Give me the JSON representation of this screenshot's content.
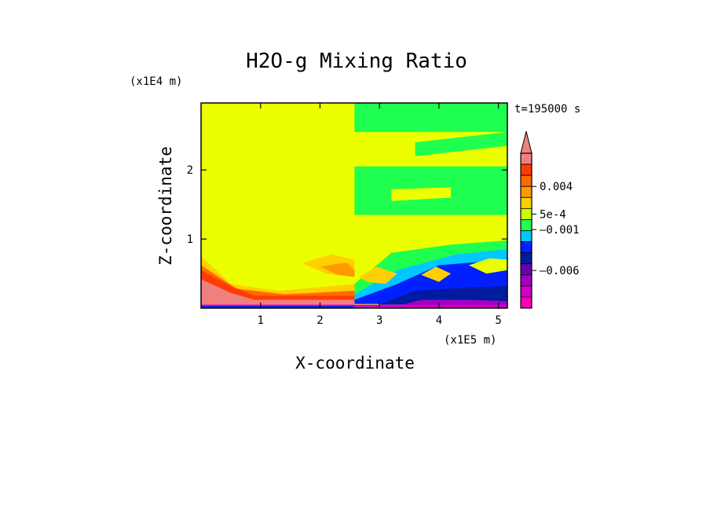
{
  "chart_data": {
    "type": "heatmap",
    "title": "H2O-g Mixing Ratio",
    "xlabel": "X-coordinate",
    "ylabel": "Z-coordinate",
    "x_unit": "(x1E5 m)",
    "y_unit": "(x1E4 m)",
    "time_label": "t=195000 s",
    "xlim": [
      0,
      5.15
    ],
    "ylim": [
      0,
      2.97
    ],
    "x_ticks": [
      {
        "value": 1,
        "label": "1"
      },
      {
        "value": 2,
        "label": "2"
      },
      {
        "value": 3,
        "label": "3"
      },
      {
        "value": 4,
        "label": "4"
      },
      {
        "value": 5,
        "label": "5"
      }
    ],
    "y_ticks": [
      {
        "value": 1,
        "label": "1"
      },
      {
        "value": 2,
        "label": "2"
      }
    ],
    "colorbar": {
      "levels": [
        {
          "color": "#f08080"
        },
        {
          "color": "#ff3c00"
        },
        {
          "color": "#ff6a00"
        },
        {
          "color": "#ff9a00"
        },
        {
          "color": "#ffd000"
        },
        {
          "color": "#ccff00"
        },
        {
          "color": "#1eff50"
        },
        {
          "color": "#00c8ff"
        },
        {
          "color": "#0020ff"
        },
        {
          "color": "#001aa0"
        },
        {
          "color": "#6a00b0"
        },
        {
          "color": "#a000c0"
        },
        {
          "color": "#d000c8"
        },
        {
          "color": "#ff00b4"
        }
      ],
      "labels": [
        {
          "text": "0.004",
          "value": 0.004
        },
        {
          "text": "5e-4",
          "value": 0.0005
        },
        {
          "text": "–0.001",
          "value": -0.001
        },
        {
          "text": "–0.006",
          "value": -0.006
        }
      ]
    },
    "regions": [
      {
        "color": "#ecff00",
        "points": [
          [
            0,
            0.05
          ],
          [
            5.15,
            0.05
          ],
          [
            5.15,
            2.97
          ],
          [
            0,
            2.97
          ]
        ]
      },
      {
        "color": "#1eff50",
        "points": [
          [
            2.58,
            2.55
          ],
          [
            5.15,
            2.55
          ],
          [
            5.15,
            2.97
          ],
          [
            2.58,
            2.97
          ]
        ]
      },
      {
        "color": "#1eff50",
        "points": [
          [
            2.58,
            1.35
          ],
          [
            5.15,
            1.35
          ],
          [
            5.15,
            1.95
          ],
          [
            2.58,
            1.95
          ]
        ]
      },
      {
        "color": "#ecff00",
        "points": [
          [
            2.58,
            2.05
          ],
          [
            5.15,
            2.05
          ],
          [
            5.15,
            2.5
          ],
          [
            2.58,
            2.5
          ]
        ]
      },
      {
        "color": "#1eff50",
        "points": [
          [
            2.58,
            2.65
          ],
          [
            3.5,
            2.97
          ],
          [
            3.0,
            2.97
          ],
          [
            2.58,
            2.8
          ]
        ]
      },
      {
        "color": "#1eff50",
        "points": [
          [
            2.58,
            1.95
          ],
          [
            5.15,
            1.95
          ],
          [
            5.15,
            2.05
          ],
          [
            2.58,
            2.05
          ]
        ]
      },
      {
        "color": "#1eff50",
        "points": [
          [
            3.6,
            2.2
          ],
          [
            5.15,
            2.35
          ],
          [
            5.15,
            2.55
          ],
          [
            3.6,
            2.4
          ]
        ]
      },
      {
        "color": "#ecff00",
        "points": [
          [
            3.2,
            1.55
          ],
          [
            4.2,
            1.6
          ],
          [
            4.2,
            1.75
          ],
          [
            3.2,
            1.72
          ]
        ]
      },
      {
        "color": "#1eff50",
        "points": [
          [
            2.58,
            0.35
          ],
          [
            3.2,
            0.8
          ],
          [
            4.2,
            0.92
          ],
          [
            5.15,
            0.98
          ],
          [
            5.15,
            0.15
          ],
          [
            2.58,
            0.15
          ]
        ]
      },
      {
        "color": "#00c8ff",
        "points": [
          [
            2.58,
            0.2
          ],
          [
            3.3,
            0.55
          ],
          [
            4.3,
            0.78
          ],
          [
            5.15,
            0.85
          ],
          [
            5.15,
            0.1
          ],
          [
            2.58,
            0.1
          ]
        ]
      },
      {
        "color": "#0020ff",
        "points": [
          [
            2.58,
            0.12
          ],
          [
            3.3,
            0.35
          ],
          [
            4.0,
            0.62
          ],
          [
            5.15,
            0.7
          ],
          [
            5.15,
            0.06
          ],
          [
            2.58,
            0.06
          ]
        ]
      },
      {
        "color": "#001aa0",
        "points": [
          [
            3.0,
            0.05
          ],
          [
            3.6,
            0.25
          ],
          [
            4.5,
            0.3
          ],
          [
            5.15,
            0.32
          ],
          [
            5.15,
            0.05
          ]
        ]
      },
      {
        "color": "#a000c0",
        "points": [
          [
            3.3,
            0.03
          ],
          [
            3.7,
            0.12
          ],
          [
            4.6,
            0.12
          ],
          [
            5.15,
            0.1
          ],
          [
            5.15,
            0.03
          ]
        ]
      },
      {
        "color": "#ecff00",
        "points": [
          [
            4.5,
            0.62
          ],
          [
            4.85,
            0.72
          ],
          [
            5.15,
            0.7
          ],
          [
            5.15,
            0.55
          ],
          [
            4.8,
            0.5
          ]
        ]
      },
      {
        "color": "#ffd000",
        "points": [
          [
            2.65,
            0.45
          ],
          [
            2.95,
            0.6
          ],
          [
            3.3,
            0.5
          ],
          [
            3.1,
            0.35
          ],
          [
            2.8,
            0.38
          ]
        ]
      },
      {
        "color": "#ffd000",
        "points": [
          [
            3.7,
            0.48
          ],
          [
            3.95,
            0.6
          ],
          [
            4.2,
            0.5
          ],
          [
            4.0,
            0.38
          ]
        ]
      },
      {
        "color": "#ffd000",
        "points": [
          [
            1.7,
            0.65
          ],
          [
            2.2,
            0.78
          ],
          [
            2.58,
            0.7
          ],
          [
            2.58,
            0.45
          ],
          [
            2.1,
            0.5
          ]
        ]
      },
      {
        "color": "#ff9a00",
        "points": [
          [
            2.0,
            0.6
          ],
          [
            2.45,
            0.66
          ],
          [
            2.58,
            0.55
          ],
          [
            2.58,
            0.45
          ],
          [
            2.3,
            0.48
          ]
        ]
      },
      {
        "color": "#ffd000",
        "points": [
          [
            0,
            0.75
          ],
          [
            0.5,
            0.35
          ],
          [
            1.3,
            0.25
          ],
          [
            2.58,
            0.35
          ],
          [
            2.58,
            0.05
          ],
          [
            0,
            0.05
          ]
        ]
      },
      {
        "color": "#ff6a00",
        "points": [
          [
            0,
            0.62
          ],
          [
            0.6,
            0.28
          ],
          [
            1.4,
            0.2
          ],
          [
            2.58,
            0.25
          ],
          [
            2.58,
            0.05
          ],
          [
            0,
            0.05
          ]
        ]
      },
      {
        "color": "#ff3c00",
        "points": [
          [
            0,
            0.55
          ],
          [
            0.5,
            0.32
          ],
          [
            0.9,
            0.18
          ],
          [
            2.58,
            0.18
          ],
          [
            2.58,
            0.05
          ],
          [
            0,
            0.05
          ]
        ]
      },
      {
        "color": "#f08080",
        "points": [
          [
            0,
            0.42
          ],
          [
            0.5,
            0.22
          ],
          [
            0.9,
            0.12
          ],
          [
            2.58,
            0.12
          ],
          [
            2.58,
            0.05
          ],
          [
            0,
            0.05
          ]
        ]
      },
      {
        "color": "#d000c8",
        "points": [
          [
            0,
            0.05
          ],
          [
            5.15,
            0.05
          ],
          [
            5.15,
            0
          ],
          [
            0,
            0
          ]
        ]
      },
      {
        "color": "#0020ff",
        "points": [
          [
            0,
            0.03
          ],
          [
            2.58,
            0.03
          ],
          [
            2.58,
            0
          ],
          [
            0,
            0
          ]
        ]
      }
    ]
  }
}
